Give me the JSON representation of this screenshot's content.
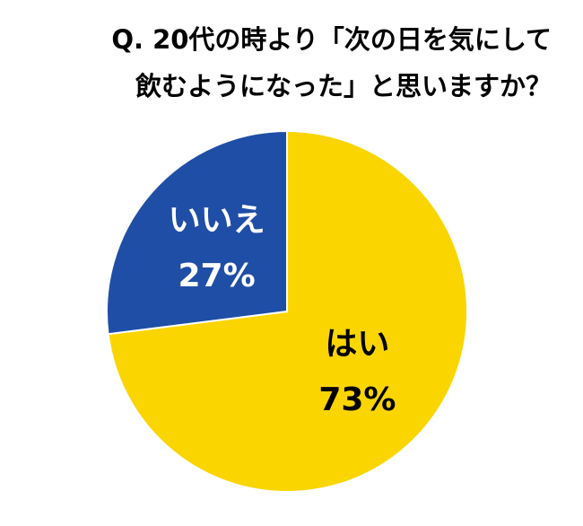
{
  "chart_data": {
    "type": "pie",
    "title": [
      "Q. 20代の時より「次の日を気にして",
      "飲むようになった」と思いますか？"
    ],
    "categories": [
      "はい",
      "いいえ"
    ],
    "values": [
      73,
      27
    ],
    "value_labels": [
      "73%",
      "27%"
    ],
    "colors": [
      "#fad500",
      "#1f4ea6"
    ],
    "label_colors": [
      "#000000",
      "#ffffff"
    ]
  }
}
